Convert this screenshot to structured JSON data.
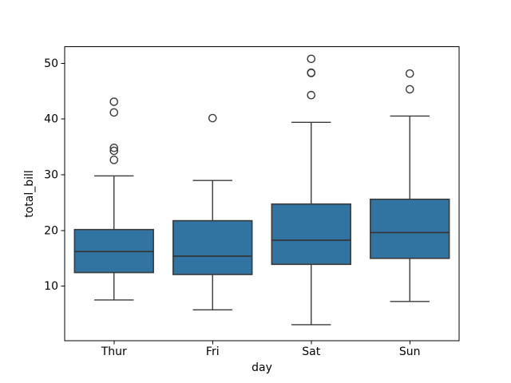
{
  "chart_data": {
    "type": "boxplot",
    "title": "",
    "xlabel": "day",
    "ylabel": "total_bill",
    "categories": [
      "Thur",
      "Fri",
      "Sat",
      "Sun"
    ],
    "yticks": [
      10,
      20,
      30,
      40,
      50
    ],
    "ylim": [
      0.2,
      53.0
    ],
    "grid": false,
    "legend": null,
    "series": [
      {
        "category": "Thur",
        "whislo": 7.51,
        "q1": 12.44,
        "med": 16.2,
        "q3": 20.16,
        "whishi": 29.8,
        "fliers": [
          32.68,
          34.3,
          34.83,
          41.19,
          43.11
        ]
      },
      {
        "category": "Fri",
        "whislo": 5.75,
        "q1": 12.09,
        "med": 15.38,
        "q3": 21.75,
        "whishi": 28.97,
        "fliers": [
          40.17
        ]
      },
      {
        "category": "Sat",
        "whislo": 3.07,
        "q1": 13.91,
        "med": 18.24,
        "q3": 24.74,
        "whishi": 39.42,
        "fliers": [
          44.3,
          48.27,
          48.33,
          50.81
        ]
      },
      {
        "category": "Sun",
        "whislo": 7.25,
        "q1": 14.99,
        "med": 19.63,
        "q3": 25.6,
        "whishi": 40.55,
        "fliers": [
          45.35,
          48.17
        ]
      }
    ],
    "colors": {
      "box_fill": "#3274a1",
      "box_edge": "#3a3a3a",
      "whisker": "#3a3a3a",
      "median": "#333333",
      "flier_edge": "#3a3a3a",
      "spine": "#000000",
      "background": "#ffffff",
      "text": "#000000"
    }
  }
}
